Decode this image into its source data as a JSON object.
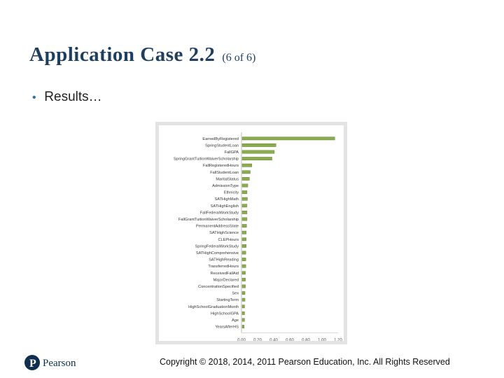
{
  "slide": {
    "title": "Application Case 2.2",
    "subtitle": "(6 of 6)",
    "bullet": "Results…"
  },
  "chart_data": {
    "type": "bar",
    "orientation": "horizontal",
    "categories": [
      "EarnedByRegistered",
      "SpringStudentLoan",
      "FallGPA",
      "SpringGrantTuitionWaiverScholarship",
      "FallRegisteredHours",
      "FallStudentLoan",
      "MaritalStatus",
      "AdmissionType",
      "Ethnicity",
      "SATHighMath",
      "SATHighEnglish",
      "FallFederalWorkStudy",
      "FallGrantTuitionWaiverScholarship",
      "PermanentAddressState",
      "SATHighScience",
      "CLEPHours",
      "SpringFederalWorkStudy",
      "SATHighComprehensive",
      "SATHighReading",
      "TransferredHours",
      "ReceivedFallAid",
      "MajorDeclared",
      "ConcentrationSpecified",
      "Sex",
      "StartingTerm",
      "HighSchoolGraduationMonth",
      "HighSchoolGPA",
      "Age",
      "YearsAfterHS"
    ],
    "values": [
      1.15,
      0.42,
      0.4,
      0.37,
      0.12,
      0.1,
      0.09,
      0.07,
      0.06,
      0.065,
      0.06,
      0.06,
      0.06,
      0.055,
      0.05,
      0.05,
      0.05,
      0.045,
      0.045,
      0.045,
      0.04,
      0.04,
      0.04,
      0.035,
      0.035,
      0.03,
      0.03,
      0.03,
      0.025
    ],
    "xticks": [
      "0.00",
      "0.20",
      "0.40",
      "0.60",
      "0.80",
      "1.00",
      "1.20"
    ],
    "xlim": [
      0,
      1.2
    ],
    "bar_color": "#8aab4e",
    "bar_edge_color": "#5e7d2a"
  },
  "footer": {
    "brand": "Pearson",
    "copyright": "Copyright © 2018, 2014, 2011 Pearson Education, Inc. All Rights Reserved",
    "brand_color": "#0e2f4d"
  }
}
